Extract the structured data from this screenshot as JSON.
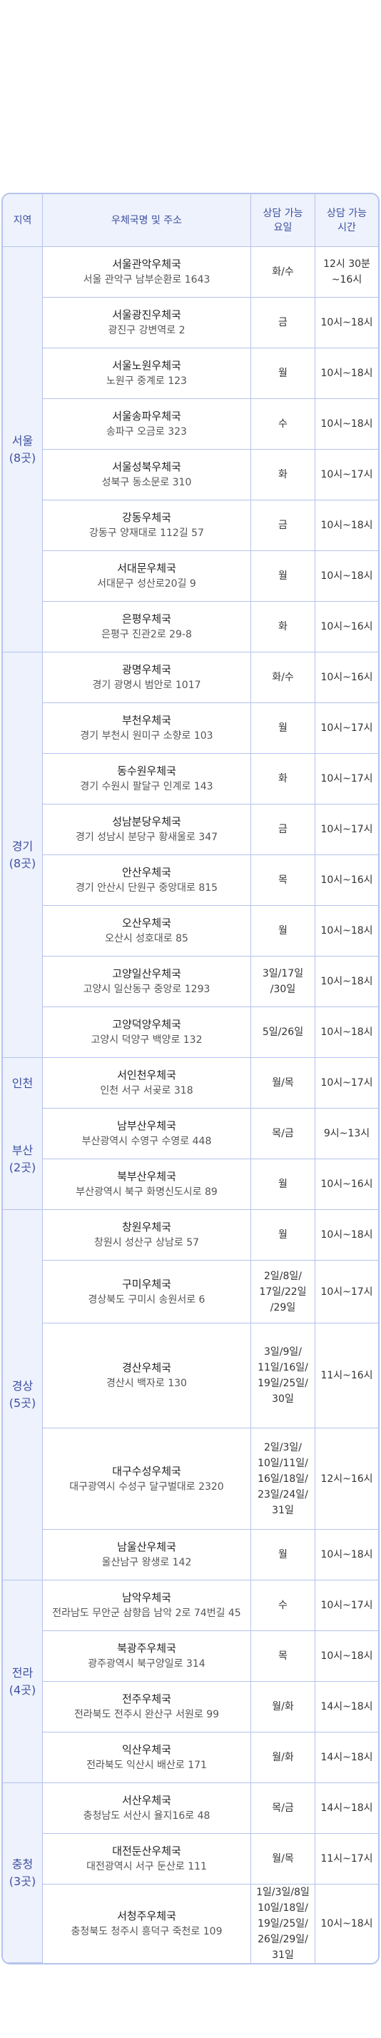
{
  "header": {
    "region": "지역",
    "office": "우체국명 및 주소",
    "days": "상담 가능\n요일",
    "time": "상담 가능\n시간"
  },
  "groups": [
    {
      "region": "서울\n(8곳)",
      "rows": [
        {
          "name": "서울관악우체국",
          "address": "서울 관악구 남부순환로 1643",
          "days": "화/수",
          "time": "12시 30분\n~16시"
        },
        {
          "name": "서울광진우체국",
          "address": "광진구 강변역로 2",
          "days": "금",
          "time": "10시~18시"
        },
        {
          "name": "서울노원우체국",
          "address": "노원구 중계로 123",
          "days": "월",
          "time": "10시~18시"
        },
        {
          "name": "서울송파우체국",
          "address": "송파구 오금로 323",
          "days": "수",
          "time": "10시~18시"
        },
        {
          "name": "서울성북우체국",
          "address": "성북구 동소문로 310",
          "days": "화",
          "time": "10시~17시"
        },
        {
          "name": "강동우체국",
          "address": "강동구 양재대로 112길 57",
          "days": "금",
          "time": "10시~18시"
        },
        {
          "name": "서대문우체국",
          "address": "서대문구 성산로20길 9",
          "days": "월",
          "time": "10시~18시"
        },
        {
          "name": "은평우체국",
          "address": "은평구 진관2로 29-8",
          "days": "화",
          "time": "10시~16시"
        }
      ]
    },
    {
      "region": "경기\n(8곳)",
      "rows": [
        {
          "name": "광명우체국",
          "address": "경기 광명시 범안로 1017",
          "days": "화/수",
          "time": "10시~16시"
        },
        {
          "name": "부천우체국",
          "address": "경기 부천시 원미구 소향로 103",
          "days": "월",
          "time": "10시~17시"
        },
        {
          "name": "동수원우체국",
          "address": "경기 수원시 팔달구 인계로 143",
          "days": "화",
          "time": "10시~17시"
        },
        {
          "name": "성남분당우체국",
          "address": "경기 성남시 분당구 황새울로 347",
          "days": "금",
          "time": "10시~17시"
        },
        {
          "name": "안산우체국",
          "address": "경기 안산시 단원구 중앙대로 815",
          "days": "목",
          "time": "10시~16시"
        },
        {
          "name": "오산우체국",
          "address": "오산시 성호대로 85",
          "days": "월",
          "time": "10시~18시"
        },
        {
          "name": "고양일산우체국",
          "address": "고양시 일산동구 중앙로 1293",
          "days": "3일/17일\n/30일",
          "time": "10시~18시"
        },
        {
          "name": "고양덕양우체국",
          "address": "고양시 덕양구 백양로 132",
          "days": "5일/26일",
          "time": "10시~18시"
        }
      ]
    },
    {
      "region": "인천",
      "rows": [
        {
          "name": "서인천우체국",
          "address": "인천 서구 서곶로 318",
          "days": "월/목",
          "time": "10시~17시"
        }
      ]
    },
    {
      "region": "부산\n(2곳)",
      "rows": [
        {
          "name": "남부산우체국",
          "address": "부산광역시 수영구 수영로 448",
          "days": "목/금",
          "time": "9시~13시"
        },
        {
          "name": "북부산우체국",
          "address": "부산광역시 북구 화명신도시로 89",
          "days": "월",
          "time": "10시~16시"
        }
      ]
    },
    {
      "region": "경상\n(5곳)",
      "rows": [
        {
          "name": "창원우체국",
          "address": "창원시 성산구 상남로 57",
          "days": "월",
          "time": "10시~18시"
        },
        {
          "name": "구미우체국",
          "address": "경상북도 구미시 송원서로 6",
          "days": "2일/8일/\n17일/22일\n/29일",
          "time": "10시~17시"
        },
        {
          "name": "경산우체국",
          "address": "경산시 백자로 130",
          "days": "3일/9일/\n11일/16일/\n19일/25일/\n30일",
          "time": "11시~16시"
        },
        {
          "name": "대구수성우체국",
          "address": "대구광역시 수성구 달구벌대로 2320",
          "days": "2일/3일/\n10일/11일/\n16일/18일/\n23일/24일/\n31일",
          "time": "12시~16시"
        },
        {
          "name": "남울산우체국",
          "address": "울산남구 왕생로 142",
          "days": "월",
          "time": "10시~18시"
        }
      ]
    },
    {
      "region": "전라\n(4곳)",
      "rows": [
        {
          "name": "남악우체국",
          "address": "전라남도 무안군 삼향읍 남악 2로 74번길 45",
          "days": "수",
          "time": "10시~17시"
        },
        {
          "name": "북광주우체국",
          "address": "광주광역시 북구양일로 314",
          "days": "목",
          "time": "10시~18시"
        },
        {
          "name": "전주우체국",
          "address": "전라북도 전주시 완산구 서원로 99",
          "days": "월/화",
          "time": "14시~18시"
        },
        {
          "name": "익산우체국",
          "address": "전라북도 익산시 배산로 171",
          "days": "월/화",
          "time": "14시~18시"
        }
      ]
    },
    {
      "region": "충청\n(3곳)",
      "rows": [
        {
          "name": "서산우체국",
          "address": "충청남도 서산시 율지16로 48",
          "days": "목/금",
          "time": "14시~18시"
        },
        {
          "name": "대전둔산우체국",
          "address": "대전광역시 서구 둔산로 111",
          "days": "월/목",
          "time": "11시~17시"
        },
        {
          "name": "서청주우체국",
          "address": "충청북도 청주시 흥덕구 죽천로 109",
          "days": "1일/3일/8일\n10일/18일/\n19일/25일/\n26일/29일/\n31일",
          "time": "10시~18시"
        }
      ]
    }
  ]
}
